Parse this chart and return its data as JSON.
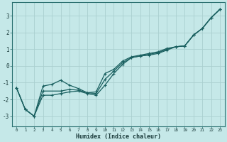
{
  "xlabel": "Humidex (Indice chaleur)",
  "bg_color": "#c5e8e8",
  "grid_color": "#aad0d0",
  "line_color": "#1a6060",
  "xlim": [
    -0.5,
    23.5
  ],
  "ylim": [
    -3.6,
    3.8
  ],
  "xticks": [
    0,
    1,
    2,
    3,
    4,
    5,
    6,
    7,
    8,
    9,
    10,
    11,
    12,
    13,
    14,
    15,
    16,
    17,
    18,
    19,
    20,
    21,
    22,
    23
  ],
  "yticks": [
    -3,
    -2,
    -1,
    0,
    1,
    2,
    3
  ],
  "line1_x": [
    0,
    1,
    2,
    3,
    4,
    5,
    6,
    7,
    8,
    9,
    10,
    11,
    12,
    13,
    14,
    15,
    16,
    17,
    18,
    19,
    20,
    21,
    22,
    23
  ],
  "line1_y": [
    -1.3,
    -2.6,
    -3.0,
    -1.2,
    -1.1,
    -0.85,
    -1.15,
    -1.35,
    -1.6,
    -1.55,
    -0.45,
    -0.2,
    0.3,
    0.55,
    0.65,
    0.75,
    0.85,
    1.05,
    1.15,
    1.2,
    1.85,
    2.25,
    2.9,
    3.4
  ],
  "line2_x": [
    0,
    1,
    2,
    3,
    4,
    5,
    6,
    7,
    8,
    9,
    10,
    11,
    12,
    13,
    14,
    15,
    16,
    17,
    18,
    19,
    20,
    21,
    22,
    23
  ],
  "line2_y": [
    -1.3,
    -2.6,
    -3.0,
    -1.75,
    -1.75,
    -1.65,
    -1.55,
    -1.5,
    -1.65,
    -1.75,
    -1.15,
    -0.45,
    0.1,
    0.5,
    0.6,
    0.7,
    0.8,
    1.0,
    1.15,
    1.2,
    1.85,
    2.25,
    2.9,
    3.4
  ],
  "line3_x": [
    0,
    1,
    2,
    3,
    5,
    6,
    7,
    8,
    9,
    10,
    11,
    12,
    13,
    14,
    15,
    16,
    17,
    18,
    19,
    20,
    21,
    22,
    23
  ],
  "line3_y": [
    -1.3,
    -2.6,
    -3.0,
    -1.5,
    -1.5,
    -1.4,
    -1.45,
    -1.6,
    -1.65,
    -0.8,
    -0.3,
    0.2,
    0.5,
    0.6,
    0.65,
    0.75,
    0.95,
    1.15,
    1.2,
    1.85,
    2.25,
    2.9,
    3.4
  ]
}
